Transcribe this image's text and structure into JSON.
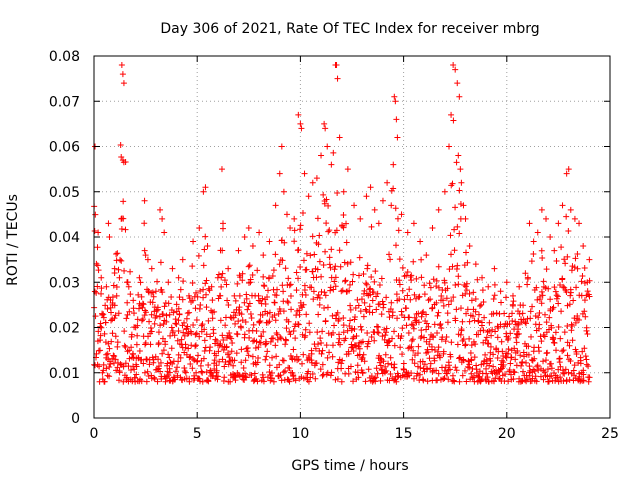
{
  "chart_data": {
    "type": "scatter",
    "title": "Day 306 of 2021, Rate Of TEC Index for receiver mbrg",
    "xlabel": "GPS time / hours",
    "ylabel": "ROTI / TECUs",
    "xlim": [
      0,
      25
    ],
    "ylim": [
      0,
      0.08
    ],
    "x_ticks": [
      0,
      5,
      10,
      15,
      20,
      25
    ],
    "x_tick_labels": [
      "0",
      "5",
      "10",
      "15",
      "20",
      "25"
    ],
    "y_ticks": [
      0,
      0.01,
      0.02,
      0.03,
      0.04,
      0.05,
      0.06,
      0.07,
      0.08
    ],
    "y_tick_labels": [
      "0",
      "0.01",
      "0.02",
      "0.03",
      "0.04",
      "0.05",
      "0.06",
      "0.07",
      "0.08"
    ],
    "grid": true,
    "marker": "plus",
    "color": "#ff0000",
    "series": [
      {
        "points": [
          [
            0.05,
            0.06
          ],
          [
            0.2,
            0.041
          ],
          [
            0.35,
            0.031
          ],
          [
            0.6,
            0.029
          ],
          [
            0.7,
            0.043
          ],
          [
            0.75,
            0.04
          ],
          [
            0.9,
            0.025
          ],
          [
            1.0,
            0.033
          ],
          [
            1.1,
            0.027
          ],
          [
            1.35,
            0.078
          ],
          [
            1.4,
            0.076
          ],
          [
            1.45,
            0.074
          ],
          [
            1.4,
            0.057
          ],
          [
            1.6,
            0.03
          ],
          [
            1.9,
            0.026
          ],
          [
            2.2,
            0.031
          ],
          [
            2.45,
            0.048
          ],
          [
            2.5,
            0.036
          ],
          [
            2.8,
            0.033
          ],
          [
            3.0,
            0.028
          ],
          [
            3.2,
            0.046
          ],
          [
            3.3,
            0.044
          ],
          [
            3.4,
            0.041
          ],
          [
            3.6,
            0.03
          ],
          [
            3.8,
            0.033
          ],
          [
            4.1,
            0.031
          ],
          [
            4.3,
            0.035
          ],
          [
            4.6,
            0.027
          ],
          [
            4.8,
            0.039
          ],
          [
            5.1,
            0.042
          ],
          [
            5.3,
            0.05
          ],
          [
            5.4,
            0.051
          ],
          [
            5.5,
            0.038
          ],
          [
            5.7,
            0.029
          ],
          [
            6.0,
            0.031
          ],
          [
            6.2,
            0.055
          ],
          [
            6.25,
            0.043
          ],
          [
            6.5,
            0.033
          ],
          [
            6.8,
            0.027
          ],
          [
            7.0,
            0.037
          ],
          [
            7.3,
            0.04
          ],
          [
            7.5,
            0.042
          ],
          [
            7.7,
            0.038
          ],
          [
            8.0,
            0.041
          ],
          [
            8.2,
            0.036
          ],
          [
            8.5,
            0.039
          ],
          [
            8.8,
            0.047
          ],
          [
            9.0,
            0.054
          ],
          [
            9.1,
            0.06
          ],
          [
            9.2,
            0.05
          ],
          [
            9.35,
            0.045
          ],
          [
            9.5,
            0.042
          ],
          [
            9.7,
            0.044
          ],
          [
            9.9,
            0.067
          ],
          [
            10.0,
            0.065
          ],
          [
            10.05,
            0.064
          ],
          [
            10.2,
            0.054
          ],
          [
            10.4,
            0.049
          ],
          [
            10.6,
            0.052
          ],
          [
            10.8,
            0.053
          ],
          [
            11.0,
            0.058
          ],
          [
            11.15,
            0.065
          ],
          [
            11.2,
            0.064
          ],
          [
            11.3,
            0.06
          ],
          [
            11.5,
            0.056
          ],
          [
            11.7,
            0.078
          ],
          [
            11.75,
            0.078
          ],
          [
            11.8,
            0.075
          ],
          [
            11.9,
            0.062
          ],
          [
            12.1,
            0.05
          ],
          [
            12.3,
            0.055
          ],
          [
            12.6,
            0.047
          ],
          [
            12.9,
            0.044
          ],
          [
            13.2,
            0.049
          ],
          [
            13.4,
            0.051
          ],
          [
            13.6,
            0.046
          ],
          [
            13.8,
            0.043
          ],
          [
            14.0,
            0.048
          ],
          [
            14.2,
            0.052
          ],
          [
            14.4,
            0.047
          ],
          [
            14.55,
            0.071
          ],
          [
            14.6,
            0.07
          ],
          [
            14.65,
            0.066
          ],
          [
            14.7,
            0.062
          ],
          [
            14.5,
            0.056
          ],
          [
            14.9,
            0.045
          ],
          [
            15.2,
            0.041
          ],
          [
            15.5,
            0.043
          ],
          [
            15.8,
            0.039
          ],
          [
            16.1,
            0.036
          ],
          [
            16.4,
            0.042
          ],
          [
            16.7,
            0.046
          ],
          [
            17.0,
            0.05
          ],
          [
            17.2,
            0.06
          ],
          [
            17.3,
            0.067
          ],
          [
            17.4,
            0.078
          ],
          [
            17.5,
            0.077
          ],
          [
            17.6,
            0.074
          ],
          [
            17.7,
            0.071
          ],
          [
            17.65,
            0.058
          ],
          [
            17.75,
            0.055
          ],
          [
            17.8,
            0.052
          ],
          [
            17.9,
            0.047
          ],
          [
            18.0,
            0.044
          ],
          [
            18.2,
            0.038
          ],
          [
            18.5,
            0.034
          ],
          [
            18.8,
            0.031
          ],
          [
            19.1,
            0.029
          ],
          [
            19.4,
            0.033
          ],
          [
            19.7,
            0.028
          ],
          [
            20.0,
            0.03
          ],
          [
            20.3,
            0.027
          ],
          [
            20.6,
            0.029
          ],
          [
            20.9,
            0.032
          ],
          [
            21.1,
            0.043
          ],
          [
            21.3,
            0.039
          ],
          [
            21.5,
            0.041
          ],
          [
            21.7,
            0.046
          ],
          [
            21.9,
            0.044
          ],
          [
            22.1,
            0.04
          ],
          [
            22.3,
            0.037
          ],
          [
            22.5,
            0.043
          ],
          [
            22.7,
            0.047
          ],
          [
            22.9,
            0.054
          ],
          [
            23.0,
            0.055
          ],
          [
            23.1,
            0.046
          ],
          [
            23.3,
            0.044
          ],
          [
            23.5,
            0.043
          ],
          [
            23.7,
            0.038
          ],
          [
            23.9,
            0.03
          ],
          [
            24.0,
            0.035
          ]
        ]
      }
    ],
    "scatter_band": {
      "x_start": 0,
      "x_end": 24,
      "step": 0.04,
      "y_min": 0.003,
      "y_base_max": 0.03
    }
  }
}
